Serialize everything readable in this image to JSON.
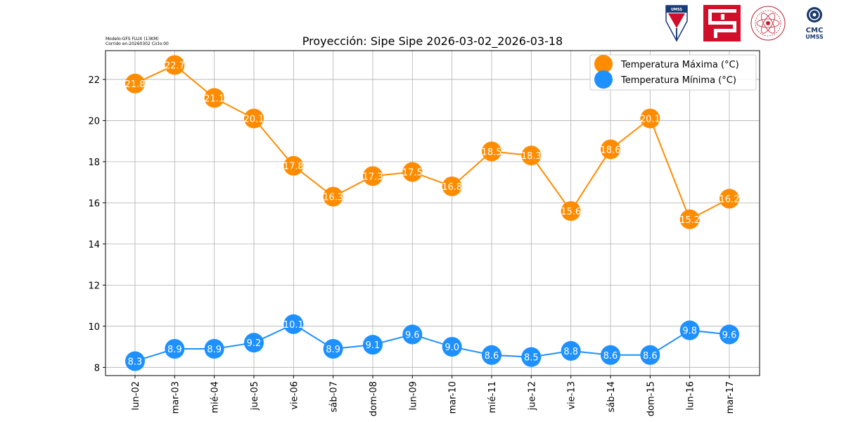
{
  "header": {
    "model_line": "Modelo:GFS FLUX (13KM)",
    "run_line": "Corrido en:20260302 Ciclo:00"
  },
  "logos": {
    "umss_shield": "UMSS",
    "cmc_top": "CMC",
    "cmc_bottom": "UMSS"
  },
  "chart_data": {
    "type": "line",
    "title": "Proyección: Sipe Sipe 2026-03-02_2026-03-18",
    "xlabel": "",
    "ylabel": "",
    "categories": [
      "lun-02",
      "mar-03",
      "mié-04",
      "jue-05",
      "vie-06",
      "sáb-07",
      "dom-08",
      "lun-09",
      "mar-10",
      "mié-11",
      "jue-12",
      "vie-13",
      "sáb-14",
      "dom-15",
      "lun-16",
      "mar-17"
    ],
    "series": [
      {
        "name": "Temperatura Máxima  (°C)",
        "color": "#ff8c00",
        "values": [
          21.8,
          22.7,
          21.1,
          20.1,
          17.8,
          16.3,
          17.3,
          17.5,
          16.8,
          18.5,
          18.3,
          15.6,
          18.6,
          20.1,
          15.2,
          16.2
        ]
      },
      {
        "name": "Temperatura Mínima  (°C)",
        "color": "#1e90ff",
        "values": [
          8.3,
          8.9,
          8.9,
          9.2,
          10.1,
          8.9,
          9.1,
          9.6,
          9.0,
          8.6,
          8.5,
          8.8,
          8.6,
          8.6,
          9.8,
          9.6
        ]
      }
    ],
    "yticks": [
      8,
      10,
      12,
      14,
      16,
      18,
      20,
      22
    ],
    "ylim": [
      7.6,
      23.4
    ],
    "grid": true,
    "legend": "top-right"
  }
}
